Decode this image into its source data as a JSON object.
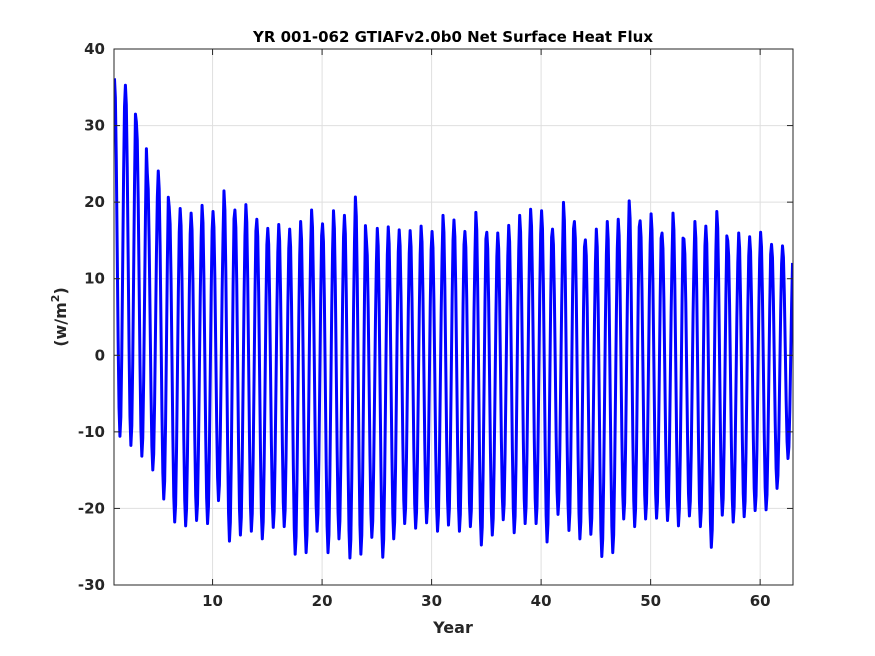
{
  "chart_data": {
    "type": "line",
    "title": "YR 001-062 GTIAFv2.0b0 Net Surface Heat Flux",
    "xlabel": "Year",
    "ylabel": "(w/m",
    "ylabel_sup": "2",
    "ylabel_close": ")",
    "xlim": [
      1,
      63
    ],
    "ylim": [
      -30,
      40
    ],
    "xticks": [
      10,
      20,
      30,
      40,
      50,
      60
    ],
    "yticks": [
      -30,
      -20,
      -10,
      0,
      10,
      20,
      30,
      40
    ],
    "xtick_labels": [
      "10",
      "20",
      "30",
      "40",
      "50",
      "60"
    ],
    "ytick_labels": [
      "-30",
      "-20",
      "-10",
      "0",
      "10",
      "20",
      "30",
      "40"
    ],
    "grid": true,
    "series": [
      {
        "color": "#0000ff",
        "samples_per_year": 12,
        "annual_max": [
          36.2,
          35.3,
          30.5,
          23.8,
          24.1,
          19.4,
          19.2,
          18.6,
          19.6,
          18.8,
          21.5,
          19.0,
          19.7,
          17.8,
          16.6,
          17.1,
          16.5,
          17.5,
          19.0,
          17.2,
          18.9,
          18.3,
          20.7,
          15.2,
          16.6,
          16.8,
          16.4,
          16.3,
          16.9,
          16.2,
          18.3,
          17.7,
          16.2,
          18.7,
          16.1,
          16.0,
          17.0,
          18.3,
          19.1,
          18.9,
          16.5,
          20.0,
          17.5,
          15.1,
          16.5,
          17.5,
          17.8,
          20.2,
          17.6,
          18.5,
          16.0,
          18.6,
          15.2,
          17.5,
          16.9,
          18.8,
          15.0,
          16.0,
          15.5,
          16.1,
          14.5,
          14.3
        ],
        "annual_min": [
          -10.6,
          -11.8,
          -13.2,
          -15.0,
          -18.8,
          -21.8,
          -22.3,
          -21.6,
          -22.0,
          -19.0,
          -24.3,
          -23.5,
          -23.0,
          -24.0,
          -22.5,
          -22.4,
          -26.0,
          -25.8,
          -23.0,
          -25.8,
          -24.0,
          -26.5,
          -26.0,
          -23.8,
          -26.4,
          -24.0,
          -22.0,
          -22.6,
          -21.9,
          -23.0,
          -22.2,
          -23.0,
          -22.4,
          -24.8,
          -23.5,
          -21.5,
          -23.2,
          -22.0,
          -22.0,
          -24.4,
          -20.8,
          -22.9,
          -24.0,
          -23.4,
          -26.3,
          -25.8,
          -21.4,
          -22.4,
          -21.4,
          -21.3,
          -21.6,
          -22.3,
          -21.0,
          -22.4,
          -25.1,
          -20.9,
          -21.8,
          -21.1,
          -20.3,
          -20.2,
          -17.4,
          -13.5
        ]
      }
    ]
  }
}
